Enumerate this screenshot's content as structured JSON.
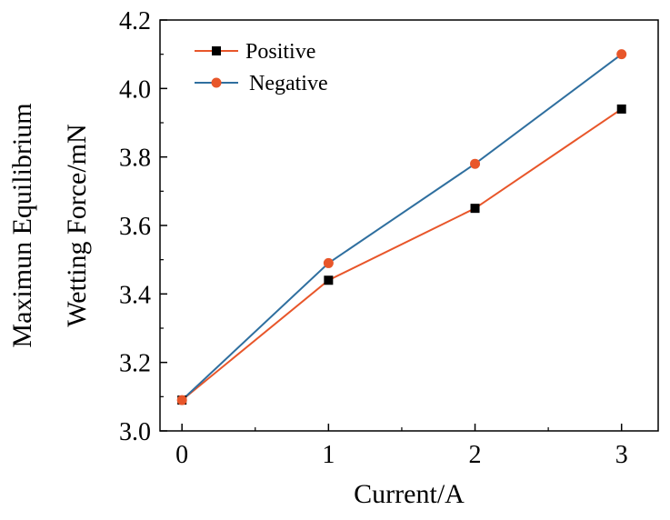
{
  "chart_data": {
    "type": "line",
    "title": "",
    "xlabel": "Current/A",
    "ylabel_line1": "Maximun Equilibrium",
    "ylabel_line2": "Wetting Force/mN",
    "x": [
      0,
      1,
      2,
      3
    ],
    "xlim": [
      -0.15,
      3.25
    ],
    "ylim": [
      3.0,
      4.2
    ],
    "xticks": [
      "0",
      "1",
      "2",
      "3"
    ],
    "yticks": [
      "3.0",
      "3.2",
      "3.4",
      "3.6",
      "3.8",
      "4.0",
      "4.2"
    ],
    "grid": false,
    "legend_position": "top-left",
    "series": [
      {
        "name": "Positive",
        "values": [
          3.09,
          3.44,
          3.65,
          3.94
        ],
        "line_color": "#e8562a",
        "marker": "square",
        "marker_color": "#000000"
      },
      {
        "name": "Negative",
        "values": [
          3.09,
          3.49,
          3.78,
          4.1
        ],
        "line_color": "#2f6f9f",
        "marker": "circle",
        "marker_color": "#e8562a"
      }
    ]
  }
}
